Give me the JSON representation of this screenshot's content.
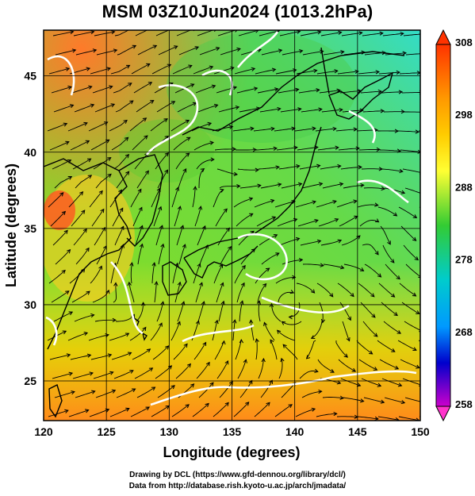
{
  "title": "MSM 03Z10Jun2024 (1013.2hPa)",
  "map": {
    "xlabel": "Longitude (degrees)",
    "ylabel": "Latitude  (degrees)",
    "lon_range": [
      120,
      150
    ],
    "lat_range": [
      22.4,
      48
    ],
    "lon_ticks": [
      "120",
      "125",
      "130",
      "135",
      "140",
      "145",
      "150"
    ],
    "lat_ticks": [
      "25",
      "30",
      "35",
      "40",
      "45"
    ],
    "grid": true
  },
  "colorbar": {
    "labels": [
      "308",
      "298",
      "288",
      "278",
      "268",
      "258"
    ],
    "colors": [
      "#ff0000",
      "#ff9900",
      "#ffff33",
      "#33cc33",
      "#00cccc",
      "#0000ff",
      "#cc00cc"
    ]
  },
  "credits": {
    "line1": "Drawing by DCL (https://www.gfd-dennou.org/library/dcl/)",
    "line2": "Data from http://database.rish.kyoto-u.ac.jp/arch/jmadata/"
  }
}
